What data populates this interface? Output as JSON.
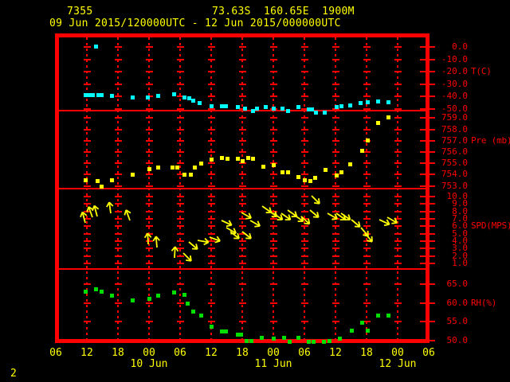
{
  "header": {
    "station_id": "7355",
    "location_line": "73.63S  160.65E  1900M",
    "period_line": "09 Jun 2015/120000UTC - 12 Jun 2015/000000UTC"
  },
  "footer": {
    "page_number": "2"
  },
  "colors": {
    "background": "#000000",
    "frame": "#ff0000",
    "axis_text": "#ff0000",
    "header_text": "#ffff00",
    "temperature": "#00ffff",
    "pressure": "#ffff00",
    "wind": "#ffff00",
    "humidity": "#00dd00"
  },
  "chart_data": {
    "type": "scatter",
    "title": "Radiosonde station time-series meteogram",
    "x_axis": {
      "unit": "UTC hour",
      "hours_span": [
        6,
        78
      ],
      "tick_step_hours": 6,
      "tick_labels": [
        "06",
        "12",
        "18",
        "00",
        "06",
        "12",
        "18",
        "00",
        "06",
        "12",
        "18",
        "00",
        "06"
      ],
      "date_labels": [
        {
          "text": "10 Jun",
          "hour": 24
        },
        {
          "text": "11 Jun",
          "hour": 48
        },
        {
          "text": "12 Jun",
          "hour": 72
        }
      ]
    },
    "panels": [
      {
        "id": "temperature",
        "ylabel": "T(C)",
        "marker": "square",
        "color": "#00ffff",
        "ticks": [
          0.0,
          -10.0,
          -20.0,
          -30.0,
          -40.0,
          -50.0
        ],
        "ylim": [
          -53,
          8
        ],
        "points": [
          [
            11.7,
            -38.5
          ],
          [
            12.6,
            -39.0
          ],
          [
            13.2,
            -38.5
          ],
          [
            13.8,
            0.5
          ],
          [
            14.2,
            -38.5
          ],
          [
            14.8,
            -38.5
          ],
          [
            16.8,
            -39.5
          ],
          [
            20.9,
            -40.5
          ],
          [
            23.7,
            -41.0
          ],
          [
            25.7,
            -39.5
          ],
          [
            28.9,
            -38.0
          ],
          [
            30.9,
            -40.5
          ],
          [
            31.8,
            -41.5
          ],
          [
            32.6,
            -43.0
          ],
          [
            33.8,
            -45.0
          ],
          [
            36.0,
            -47.5
          ],
          [
            38.0,
            -47.5
          ],
          [
            38.9,
            -48.0
          ],
          [
            41.1,
            -48.5
          ],
          [
            42.6,
            -49.5
          ],
          [
            44.0,
            -51.5
          ],
          [
            44.9,
            -49.5
          ],
          [
            46.5,
            -48.5
          ],
          [
            48.0,
            -49.5
          ],
          [
            49.8,
            -49.5
          ],
          [
            50.9,
            -51.5
          ],
          [
            52.9,
            -48.5
          ],
          [
            54.8,
            -50.0
          ],
          [
            55.5,
            -50.0
          ],
          [
            56.3,
            -53.0
          ],
          [
            57.9,
            -53.0
          ],
          [
            60.2,
            -48.5
          ],
          [
            61.1,
            -48.0
          ],
          [
            62.9,
            -47.0
          ],
          [
            64.9,
            -45.5
          ],
          [
            66.3,
            -44.5
          ],
          [
            68.3,
            -44.0
          ],
          [
            70.2,
            -44.5
          ]
        ]
      },
      {
        "id": "pressure",
        "ylabel": "Pre (mb)",
        "marker": "square",
        "color": "#ffff00",
        "ticks": [
          759.0,
          758.0,
          757.0,
          756.0,
          755.0,
          754.0,
          753.0
        ],
        "ylim": [
          752.8,
          759.7
        ],
        "points": [
          [
            11.8,
            753.5
          ],
          [
            14.0,
            753.4
          ],
          [
            14.8,
            752.9
          ],
          [
            16.8,
            753.5
          ],
          [
            20.9,
            754.0
          ],
          [
            24.0,
            754.5
          ],
          [
            25.7,
            754.6
          ],
          [
            28.6,
            754.6
          ],
          [
            29.5,
            754.6
          ],
          [
            30.9,
            754.0
          ],
          [
            32.0,
            754.0
          ],
          [
            32.8,
            754.6
          ],
          [
            34.0,
            755.0
          ],
          [
            36.0,
            755.3
          ],
          [
            38.0,
            755.5
          ],
          [
            39.1,
            755.4
          ],
          [
            41.1,
            755.4
          ],
          [
            42.0,
            755.2
          ],
          [
            43.1,
            755.5
          ],
          [
            44.0,
            755.4
          ],
          [
            46.0,
            754.7
          ],
          [
            48.0,
            754.8
          ],
          [
            49.8,
            754.2
          ],
          [
            50.9,
            754.2
          ],
          [
            52.9,
            753.8
          ],
          [
            54.0,
            753.5
          ],
          [
            55.1,
            753.4
          ],
          [
            56.0,
            753.7
          ],
          [
            58.0,
            754.4
          ],
          [
            60.2,
            753.9
          ],
          [
            61.1,
            754.2
          ],
          [
            62.9,
            754.9
          ],
          [
            65.1,
            756.1
          ],
          [
            66.2,
            757.0
          ],
          [
            68.3,
            758.6
          ],
          [
            70.2,
            759.1
          ]
        ]
      },
      {
        "id": "wind_speed",
        "ylabel": "SPD(MPS)",
        "marker": "arrow",
        "color": "#ffff00",
        "ticks": [
          10.0,
          9.0,
          8.0,
          7.0,
          6.0,
          5.0,
          4.0,
          3.0,
          2.0,
          1.0
        ],
        "ylim": [
          0.4,
          11.1
        ],
        "direction_convention": "degrees clockwise from up; tail anchored at speed value",
        "arrows": [
          [
            11.7,
            6.5,
            -15
          ],
          [
            13.1,
            7.2,
            -20
          ],
          [
            14.0,
            7.3,
            -15
          ],
          [
            16.6,
            7.7,
            -8
          ],
          [
            20.3,
            6.8,
            -20
          ],
          [
            23.8,
            3.6,
            -3
          ],
          [
            25.5,
            3.1,
            -5
          ],
          [
            28.9,
            1.7,
            3
          ],
          [
            30.6,
            2.4,
            135
          ],
          [
            31.7,
            3.9,
            130
          ],
          [
            33.4,
            4.1,
            100
          ],
          [
            35.7,
            4.5,
            110
          ],
          [
            38.0,
            6.8,
            115
          ],
          [
            38.9,
            5.8,
            120
          ],
          [
            39.7,
            5.3,
            128
          ],
          [
            41.8,
            7.9,
            120
          ],
          [
            42.0,
            5.3,
            128
          ],
          [
            43.5,
            6.8,
            120
          ],
          [
            45.8,
            8.7,
            125
          ],
          [
            46.9,
            8.2,
            125
          ],
          [
            48.0,
            7.8,
            125
          ],
          [
            49.5,
            7.8,
            125
          ],
          [
            50.8,
            8.2,
            125
          ],
          [
            52.0,
            7.5,
            125
          ],
          [
            53.4,
            7.3,
            132
          ],
          [
            55.1,
            8.2,
            130
          ],
          [
            55.4,
            10.1,
            135
          ],
          [
            58.5,
            7.8,
            120
          ],
          [
            60.2,
            7.8,
            125
          ],
          [
            61.1,
            7.7,
            125
          ],
          [
            63.1,
            6.9,
            130
          ],
          [
            64.9,
            5.8,
            140
          ],
          [
            65.7,
            5.1,
            140
          ],
          [
            68.5,
            6.9,
            115
          ],
          [
            70.0,
            7.2,
            120
          ]
        ]
      },
      {
        "id": "relative_humidity",
        "ylabel": "RH(%)",
        "marker": "square",
        "color": "#00dd00",
        "ticks": [
          65.0,
          60.0,
          55.0,
          50.0
        ],
        "ylim": [
          49.6,
          68.9
        ],
        "points": [
          [
            11.8,
            63.0
          ],
          [
            13.8,
            63.5
          ],
          [
            14.8,
            63.0
          ],
          [
            16.8,
            62.0
          ],
          [
            20.9,
            60.7
          ],
          [
            24.0,
            61.0
          ],
          [
            25.7,
            61.8
          ],
          [
            28.9,
            62.8
          ],
          [
            30.9,
            62.2
          ],
          [
            31.4,
            59.7
          ],
          [
            32.6,
            57.6
          ],
          [
            34.0,
            56.7
          ],
          [
            36.0,
            53.6
          ],
          [
            38.0,
            52.5
          ],
          [
            38.9,
            52.5
          ],
          [
            41.1,
            51.5
          ],
          [
            41.8,
            51.5
          ],
          [
            42.8,
            49.8
          ],
          [
            43.8,
            49.8
          ],
          [
            45.8,
            50.8
          ],
          [
            48.0,
            50.6
          ],
          [
            50.0,
            50.8
          ],
          [
            51.1,
            49.6
          ],
          [
            52.9,
            50.8
          ],
          [
            54.9,
            49.6
          ],
          [
            55.7,
            49.6
          ],
          [
            57.8,
            49.6
          ],
          [
            58.9,
            49.8
          ],
          [
            60.9,
            50.6
          ],
          [
            63.1,
            52.7
          ],
          [
            65.1,
            54.8
          ],
          [
            66.2,
            52.7
          ],
          [
            68.2,
            56.7
          ],
          [
            70.2,
            56.7
          ]
        ]
      }
    ]
  }
}
